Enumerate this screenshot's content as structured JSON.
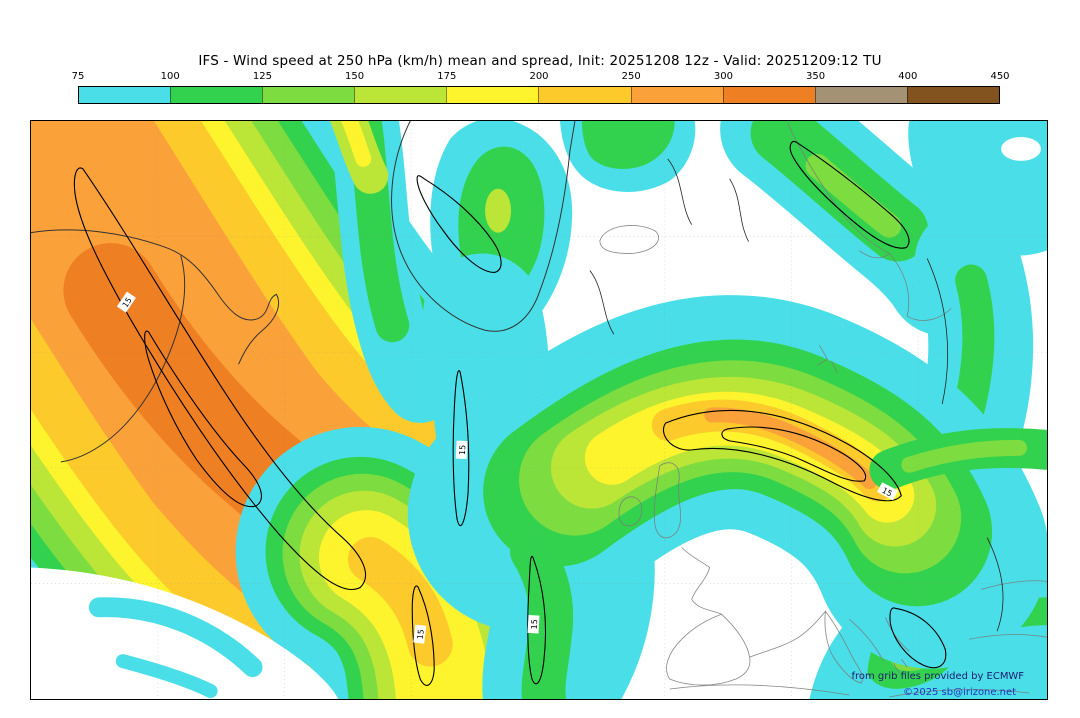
{
  "title": "IFS - Wind speed at 250 hPa (km/h) mean and spread, Init: 20251208 12z - Valid: 20251209:12 TU",
  "colorbar": {
    "ticks": [
      "75",
      "100",
      "125",
      "150",
      "175",
      "200",
      "250",
      "300",
      "350",
      "400",
      "450"
    ],
    "segments": [
      {
        "range": "75-100",
        "color": "cyan"
      },
      {
        "range": "100-125",
        "color": "green"
      },
      {
        "range": "125-150",
        "color": "ltgreen"
      },
      {
        "range": "150-175",
        "color": "ygreen"
      },
      {
        "range": "175-200",
        "color": "yellow"
      },
      {
        "range": "200-250",
        "color": "gold"
      },
      {
        "range": "250-300",
        "color": "orange"
      },
      {
        "range": "300-350",
        "color": "dkorange"
      },
      {
        "range": "350-400",
        "color": "taupe"
      },
      {
        "range": "400-450",
        "color": "brown"
      }
    ]
  },
  "map": {
    "spread_label": "15",
    "credits_line1": "from grib files provided by ECMWF",
    "credits_line2": "©2025 sb@irizone.net"
  },
  "palette": {
    "cyan": "#4adfe8",
    "green": "#33d24e",
    "ltgreen": "#7ddc3f",
    "ygreen": "#bce637",
    "yellow": "#fdf42e",
    "gold": "#fccb2b",
    "orange": "#fba13a",
    "dkorange": "#ee7f22",
    "taupe": "#a39274",
    "brown": "#82531f",
    "credit1": "#1b1b6f",
    "credit2": "#2233bb"
  }
}
